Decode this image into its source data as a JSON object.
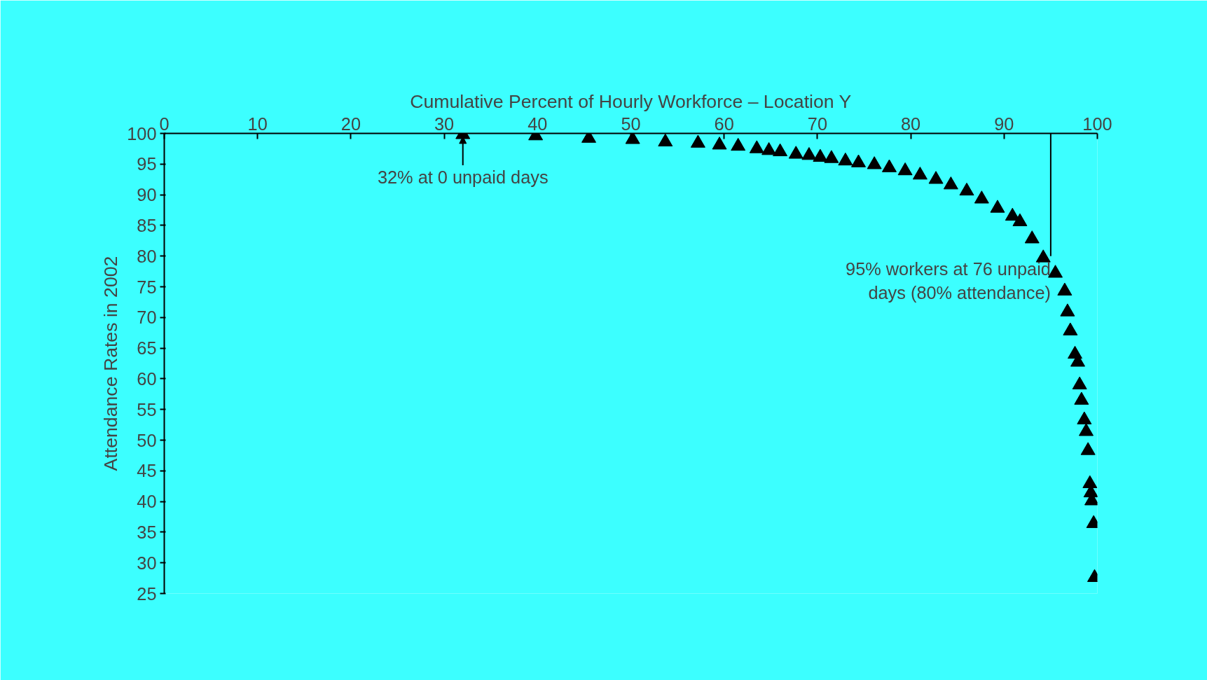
{
  "chart_data": {
    "type": "scatter",
    "xlabel": "Cumulative Percent of Hourly Workforce – Location Y",
    "ylabel": "Attendance Rates in 2002",
    "marker": "triangle",
    "grid": false,
    "x": [
      32,
      39.8,
      45.5,
      50.2,
      53.7,
      57.2,
      59.5,
      61.5,
      63.5,
      64.8,
      66,
      67.7,
      69.1,
      70.3,
      71.5,
      73,
      74.4,
      76.1,
      77.7,
      79.4,
      81,
      82.7,
      84.3,
      86,
      87.6,
      89.3,
      90.9,
      91.7,
      93,
      94.2,
      95.5,
      96.5,
      96.8,
      97.1,
      97.6,
      97.9,
      98.1,
      98.3,
      98.6,
      98.8,
      99,
      99.2,
      99.3,
      99.4,
      99.6,
      99.7
    ],
    "series": [
      {
        "color": "#000000",
        "values": [
          99.8,
          99.6,
          99.2,
          99,
          98.6,
          98.4,
          98.1,
          97.9,
          97.5,
          97.2,
          97,
          96.6,
          96.4,
          96.1,
          95.9,
          95.5,
          95.2,
          94.9,
          94.4,
          93.9,
          93.2,
          92.5,
          91.6,
          90.6,
          89.3,
          87.8,
          86.5,
          85.6,
          82.8,
          79.7,
          77.2,
          74.3,
          70.9,
          67.8,
          64,
          62.7,
          59,
          56.5,
          53.3,
          51.4,
          48.3,
          42.9,
          41.4,
          40.1,
          36.4,
          27.6
        ]
      }
    ],
    "xlim": [
      0,
      100
    ],
    "ylim": [
      25,
      100
    ],
    "xticks": [
      0,
      10,
      20,
      30,
      40,
      50,
      60,
      70,
      80,
      90,
      100
    ],
    "yticks": [
      25,
      30,
      35,
      40,
      45,
      50,
      55,
      60,
      65,
      70,
      75,
      80,
      85,
      90,
      95,
      100
    ],
    "annotations": [
      {
        "text": "32% at 0 unpaid days",
        "x": 32,
        "y": 99.8
      },
      {
        "text": "95% workers at 76 unpaid\ndays (80% attendance)",
        "x": 95,
        "y": 80
      }
    ]
  }
}
